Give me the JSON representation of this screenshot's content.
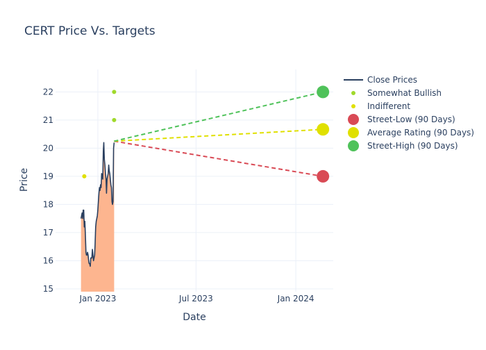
{
  "chart_data": {
    "type": "line",
    "title": "CERT Price Vs. Targets",
    "xlabel": "Date",
    "ylabel": "Price",
    "xlim": [
      "2022-10-15",
      "2024-03-10"
    ],
    "ylim": [
      14.9,
      22.8
    ],
    "y_ticks": [
      15,
      16,
      17,
      18,
      19,
      20,
      21,
      22
    ],
    "x_ticks": [
      {
        "date": "2023-01-01",
        "label": "Jan 2023"
      },
      {
        "date": "2023-07-01",
        "label": "Jul 2023"
      },
      {
        "date": "2024-01-01",
        "label": "Jan 2024"
      }
    ],
    "grid": true,
    "legend_position": "right",
    "close_prices": {
      "name": "Close Prices",
      "color": "#2a3f5f",
      "fill_color": "#fdb58f",
      "points": [
        [
          "2022-12-01",
          17.5
        ],
        [
          "2022-12-02",
          17.6
        ],
        [
          "2022-12-03",
          17.7
        ],
        [
          "2022-12-04",
          17.5
        ],
        [
          "2022-12-05",
          17.8
        ],
        [
          "2022-12-06",
          17.8
        ],
        [
          "2022-12-07",
          17.2
        ],
        [
          "2022-12-08",
          17.4
        ],
        [
          "2022-12-09",
          16.9
        ],
        [
          "2022-12-10",
          16.3
        ],
        [
          "2022-12-11",
          16.2
        ],
        [
          "2022-12-12",
          16.2
        ],
        [
          "2022-12-13",
          16.3
        ],
        [
          "2022-12-14",
          16.2
        ],
        [
          "2022-12-15",
          16.0
        ],
        [
          "2022-12-16",
          15.9
        ],
        [
          "2022-12-17",
          15.9
        ],
        [
          "2022-12-18",
          15.8
        ],
        [
          "2022-12-19",
          16.1
        ],
        [
          "2022-12-20",
          16.1
        ],
        [
          "2022-12-21",
          16.1
        ],
        [
          "2022-12-22",
          16.4
        ],
        [
          "2022-12-23",
          16.2
        ],
        [
          "2022-12-24",
          16.0
        ],
        [
          "2022-12-25",
          16.1
        ],
        [
          "2022-12-26",
          16.2
        ],
        [
          "2022-12-27",
          16.6
        ],
        [
          "2022-12-28",
          17.2
        ],
        [
          "2022-12-29",
          17.4
        ],
        [
          "2022-12-30",
          17.5
        ],
        [
          "2022-12-31",
          17.6
        ],
        [
          "2023-01-01",
          17.8
        ],
        [
          "2023-01-02",
          18.1
        ],
        [
          "2023-01-03",
          18.4
        ],
        [
          "2023-01-04",
          18.6
        ],
        [
          "2023-01-05",
          18.5
        ],
        [
          "2023-01-06",
          18.7
        ],
        [
          "2023-01-07",
          18.6
        ],
        [
          "2023-01-08",
          19.1
        ],
        [
          "2023-01-09",
          19.0
        ],
        [
          "2023-01-10",
          18.9
        ],
        [
          "2023-01-11",
          19.9
        ],
        [
          "2023-01-12",
          20.2
        ],
        [
          "2023-01-13",
          19.6
        ],
        [
          "2023-01-14",
          19.4
        ],
        [
          "2023-01-15",
          19.1
        ],
        [
          "2023-01-16",
          18.9
        ],
        [
          "2023-01-17",
          18.4
        ],
        [
          "2023-01-18",
          18.9
        ],
        [
          "2023-01-19",
          19.0
        ],
        [
          "2023-01-20",
          19.1
        ],
        [
          "2023-01-21",
          19.4
        ],
        [
          "2023-01-22",
          19.2
        ],
        [
          "2023-01-23",
          19.1
        ],
        [
          "2023-01-24",
          18.9
        ],
        [
          "2023-01-25",
          18.7
        ],
        [
          "2023-01-26",
          18.6
        ],
        [
          "2023-01-27",
          18.1
        ],
        [
          "2023-01-28",
          18.0
        ],
        [
          "2023-01-29",
          18.1
        ],
        [
          "2023-01-30",
          20.0
        ],
        [
          "2023-01-31",
          20.2
        ]
      ]
    },
    "analyst_ratings": [
      {
        "name": "Somewhat Bullish",
        "color": "#a0d92b",
        "points": [
          [
            "2023-01-31",
            22
          ],
          [
            "2023-01-31",
            21
          ]
        ]
      },
      {
        "name": "Indifferent",
        "color": "#e0e000",
        "points": [
          [
            "2022-12-07",
            19
          ]
        ]
      }
    ],
    "targets": [
      {
        "name": "Street-Low (90 Days)",
        "color": "#d94a55",
        "from": [
          "2023-01-31",
          20.25
        ],
        "to": [
          "2024-02-20",
          19.0
        ]
      },
      {
        "name": "Average Rating (90 Days)",
        "color": "#e0e000",
        "from": [
          "2023-01-31",
          20.25
        ],
        "to": [
          "2024-02-20",
          20.67
        ]
      },
      {
        "name": "Street-High (90 Days)",
        "color": "#4fc25a",
        "from": [
          "2023-01-31",
          20.25
        ],
        "to": [
          "2024-02-20",
          22.0
        ]
      }
    ]
  }
}
